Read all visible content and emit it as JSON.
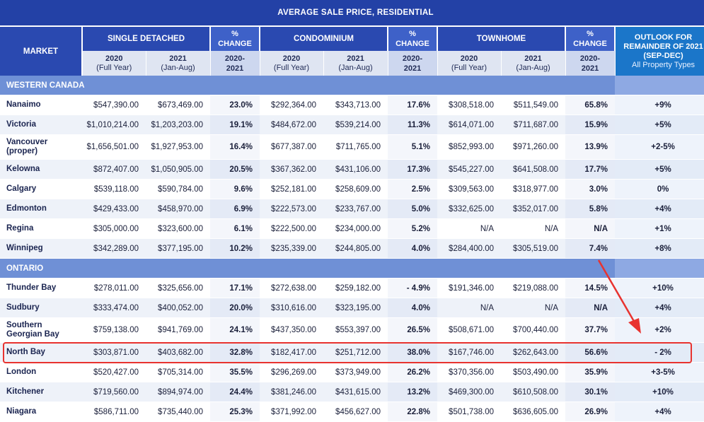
{
  "title": "AVERAGE SALE PRICE, RESIDENTIAL",
  "header": {
    "market": "MARKET",
    "single_detached": "SINGLE DETACHED",
    "condominium": "CONDOMINIUM",
    "townhome": "TOWNHOME",
    "pct_change_line1": "%",
    "pct_change_line2": "CHANGE",
    "outlook_line1": "OUTLOOK FOR",
    "outlook_line2": "REMAINDER OF 2021",
    "outlook_line3": "(SEP-DEC)",
    "outlook_sub": "All Property Types",
    "year_2020": "2020",
    "year_2020_sub": "(Full Year)",
    "year_2021": "2021",
    "year_2021_sub": "(Jan-Aug)",
    "pct_range_line1": "2020-",
    "pct_range_line2": "2021"
  },
  "sections": [
    {
      "name": "WESTERN CANADA",
      "rows": [
        {
          "market": "Nanaimo",
          "sd2020": "$547,390.00",
          "sd2021": "$673,469.00",
          "sdpct": "23.0%",
          "c2020": "$292,364.00",
          "c2021": "$343,713.00",
          "cpct": "17.6%",
          "t2020": "$308,518.00",
          "t2021": "$511,549.00",
          "tpct": "65.8%",
          "outlook": "+9%"
        },
        {
          "market": "Victoria",
          "sd2020": "$1,010,214.00",
          "sd2021": "$1,203,203.00",
          "sdpct": "19.1%",
          "c2020": "$484,672.00",
          "c2021": "$539,214.00",
          "cpct": "11.3%",
          "t2020": "$614,071.00",
          "t2021": "$711,687.00",
          "tpct": "15.9%",
          "outlook": "+5%"
        },
        {
          "market": "Vancouver (proper)",
          "sd2020": "$1,656,501.00",
          "sd2021": "$1,927,953.00",
          "sdpct": "16.4%",
          "c2020": "$677,387.00",
          "c2021": "$711,765.00",
          "cpct": "5.1%",
          "t2020": "$852,993.00",
          "t2021": "$971,260.00",
          "tpct": "13.9%",
          "outlook": "+2-5%"
        },
        {
          "market": "Kelowna",
          "sd2020": "$872,407.00",
          "sd2021": "$1,050,905.00",
          "sdpct": "20.5%",
          "c2020": "$367,362.00",
          "c2021": "$431,106.00",
          "cpct": "17.3%",
          "t2020": "$545,227.00",
          "t2021": "$641,508.00",
          "tpct": "17.7%",
          "outlook": "+5%"
        },
        {
          "market": "Calgary",
          "sd2020": "$539,118.00",
          "sd2021": "$590,784.00",
          "sdpct": "9.6%",
          "c2020": "$252,181.00",
          "c2021": "$258,609.00",
          "cpct": "2.5%",
          "t2020": "$309,563.00",
          "t2021": "$318,977.00",
          "tpct": "3.0%",
          "outlook": "0%"
        },
        {
          "market": "Edmonton",
          "sd2020": "$429,433.00",
          "sd2021": "$458,970.00",
          "sdpct": "6.9%",
          "c2020": "$222,573.00",
          "c2021": "$233,767.00",
          "cpct": "5.0%",
          "t2020": "$332,625.00",
          "t2021": "$352,017.00",
          "tpct": "5.8%",
          "outlook": "+4%"
        },
        {
          "market": "Regina",
          "sd2020": "$305,000.00",
          "sd2021": "$323,600.00",
          "sdpct": "6.1%",
          "c2020": "$222,500.00",
          "c2021": "$234,000.00",
          "cpct": "5.2%",
          "t2020": "N/A",
          "t2021": "N/A",
          "tpct": "N/A",
          "outlook": "+1%"
        },
        {
          "market": "Winnipeg",
          "sd2020": "$342,289.00",
          "sd2021": "$377,195.00",
          "sdpct": "10.2%",
          "c2020": "$235,339.00",
          "c2021": "$244,805.00",
          "cpct": "4.0%",
          "t2020": "$284,400.00",
          "t2021": "$305,519.00",
          "tpct": "7.4%",
          "outlook": "+8%"
        }
      ]
    },
    {
      "name": "ONTARIO",
      "rows": [
        {
          "market": "Thunder Bay",
          "sd2020": "$278,011.00",
          "sd2021": "$325,656.00",
          "sdpct": "17.1%",
          "c2020": "$272,638.00",
          "c2021": "$259,182.00",
          "cpct": "- 4.9%",
          "t2020": "$191,346.00",
          "t2021": "$219,088.00",
          "tpct": "14.5%",
          "outlook": "+10%"
        },
        {
          "market": "Sudbury",
          "sd2020": "$333,474.00",
          "sd2021": "$400,052.00",
          "sdpct": "20.0%",
          "c2020": "$310,616.00",
          "c2021": "$323,195.00",
          "cpct": "4.0%",
          "t2020": "N/A",
          "t2021": "N/A",
          "tpct": "N/A",
          "outlook": "+4%"
        },
        {
          "market": "Southern Georgian Bay",
          "sd2020": "$759,138.00",
          "sd2021": "$941,769.00",
          "sdpct": "24.1%",
          "c2020": "$437,350.00",
          "c2021": "$553,397.00",
          "cpct": "26.5%",
          "t2020": "$508,671.00",
          "t2021": "$700,440.00",
          "tpct": "37.7%",
          "outlook": "+2%"
        },
        {
          "market": "North Bay",
          "sd2020": "$303,871.00",
          "sd2021": "$403,682.00",
          "sdpct": "32.8%",
          "c2020": "$182,417.00",
          "c2021": "$251,712.00",
          "cpct": "38.0%",
          "t2020": "$167,746.00",
          "t2021": "$262,643.00",
          "tpct": "56.6%",
          "outlook": "- 2%"
        },
        {
          "market": "London",
          "sd2020": "$520,427.00",
          "sd2021": "$705,314.00",
          "sdpct": "35.5%",
          "c2020": "$296,269.00",
          "c2021": "$373,949.00",
          "cpct": "26.2%",
          "t2020": "$370,356.00",
          "t2021": "$503,490.00",
          "tpct": "35.9%",
          "outlook": "+3-5%"
        },
        {
          "market": "Kitchener",
          "sd2020": "$719,560.00",
          "sd2021": "$894,974.00",
          "sdpct": "24.4%",
          "c2020": "$381,246.00",
          "c2021": "$431,615.00",
          "cpct": "13.2%",
          "t2020": "$469,300.00",
          "t2021": "$610,508.00",
          "tpct": "30.1%",
          "outlook": "+10%"
        },
        {
          "market": "Niagara",
          "sd2020": "$586,711.00",
          "sd2021": "$735,440.00",
          "sdpct": "25.3%",
          "c2020": "$371,992.00",
          "c2021": "$456,627.00",
          "cpct": "22.8%",
          "t2020": "$501,738.00",
          "t2021": "$636,605.00",
          "tpct": "26.9%",
          "outlook": "+4%"
        }
      ]
    }
  ],
  "annotation": {
    "color": "#e8332f",
    "highlighted_market": "North Bay"
  }
}
